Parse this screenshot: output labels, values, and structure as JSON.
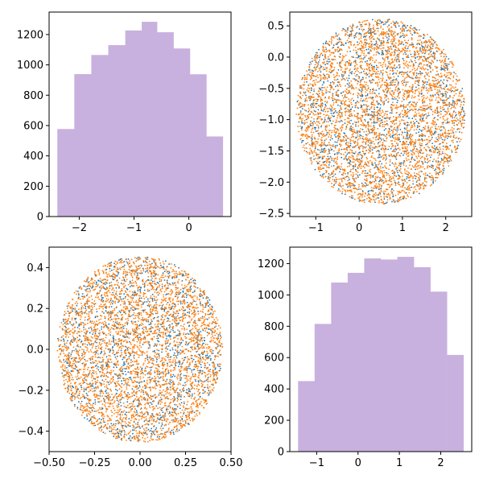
{
  "figure": {
    "background": "#ffffff"
  },
  "chart_data": [
    {
      "type": "bar",
      "position": "top-left",
      "variant": "histogram",
      "color": "#c8b1de",
      "bin_edges": [
        -2.4,
        -2.09,
        -1.78,
        -1.47,
        -1.16,
        -0.86,
        -0.58,
        -0.28,
        0.02,
        0.32,
        0.62
      ],
      "values": [
        577,
        939,
        1065,
        1130,
        1227,
        1284,
        1215,
        1108,
        938,
        528
      ],
      "xlim": [
        -2.55,
        0.77
      ],
      "ylim": [
        0,
        1348
      ],
      "xticks": [
        -2,
        -1,
        0
      ],
      "xtick_labels": [
        "−2",
        "−1",
        "0"
      ],
      "yticks": [
        0,
        200,
        400,
        600,
        800,
        1000,
        1200
      ],
      "ytick_labels": [
        "0",
        "200",
        "400",
        "600",
        "800",
        "1000",
        "1200"
      ]
    },
    {
      "type": "scatter",
      "position": "top-right",
      "colors": [
        "#1f77b4",
        "#ff7f0e"
      ],
      "shape": "ellipse",
      "center": [
        0.5,
        -0.87
      ],
      "radii": [
        1.95,
        1.48
      ],
      "xlim": [
        -1.6,
        2.6
      ],
      "ylim": [
        -2.55,
        0.72
      ],
      "xticks": [
        -1,
        0,
        1,
        2
      ],
      "xtick_labels": [
        "−1",
        "0",
        "1",
        "2"
      ],
      "yticks": [
        0.5,
        0.0,
        -0.5,
        -1.0,
        -1.5,
        -2.0,
        -2.5
      ],
      "ytick_labels": [
        "0.5",
        "0.0",
        "−0.5",
        "−1.0",
        "−1.5",
        "−2.0",
        "−2.5"
      ]
    },
    {
      "type": "scatter",
      "position": "bottom-left",
      "colors": [
        "#1f77b4",
        "#ff7f0e"
      ],
      "shape": "circle",
      "center": [
        0.0,
        0.0
      ],
      "radii": [
        0.455,
        0.455
      ],
      "xlim": [
        -0.5,
        0.5
      ],
      "ylim": [
        -0.5,
        0.5
      ],
      "xticks": [
        -0.5,
        -0.25,
        0.0,
        0.25,
        0.5
      ],
      "xtick_labels": [
        "−0.50",
        "−0.25",
        "0.00",
        "0.25",
        "0.50"
      ],
      "yticks": [
        0.4,
        0.2,
        0.0,
        -0.2,
        -0.4
      ],
      "ytick_labels": [
        "0.4",
        "0.2",
        "0.0",
        "−0.2",
        "−0.4"
      ]
    },
    {
      "type": "bar",
      "position": "bottom-right",
      "variant": "histogram",
      "color": "#c8b1de",
      "bin_edges": [
        -1.45,
        -1.05,
        -0.65,
        -0.25,
        0.15,
        0.55,
        0.95,
        1.35,
        1.75,
        2.15,
        2.55
      ],
      "values": [
        450,
        815,
        1079,
        1141,
        1233,
        1226,
        1243,
        1177,
        1021,
        617
      ],
      "xlim": [
        -1.65,
        2.75
      ],
      "ylim": [
        0,
        1305
      ],
      "xticks": [
        -1,
        0,
        1,
        2
      ],
      "xtick_labels": [
        "−1",
        "0",
        "1",
        "2"
      ],
      "yticks": [
        0,
        200,
        400,
        600,
        800,
        1000,
        1200
      ],
      "ytick_labels": [
        "0",
        "200",
        "400",
        "600",
        "800",
        "1000",
        "1200"
      ]
    }
  ]
}
